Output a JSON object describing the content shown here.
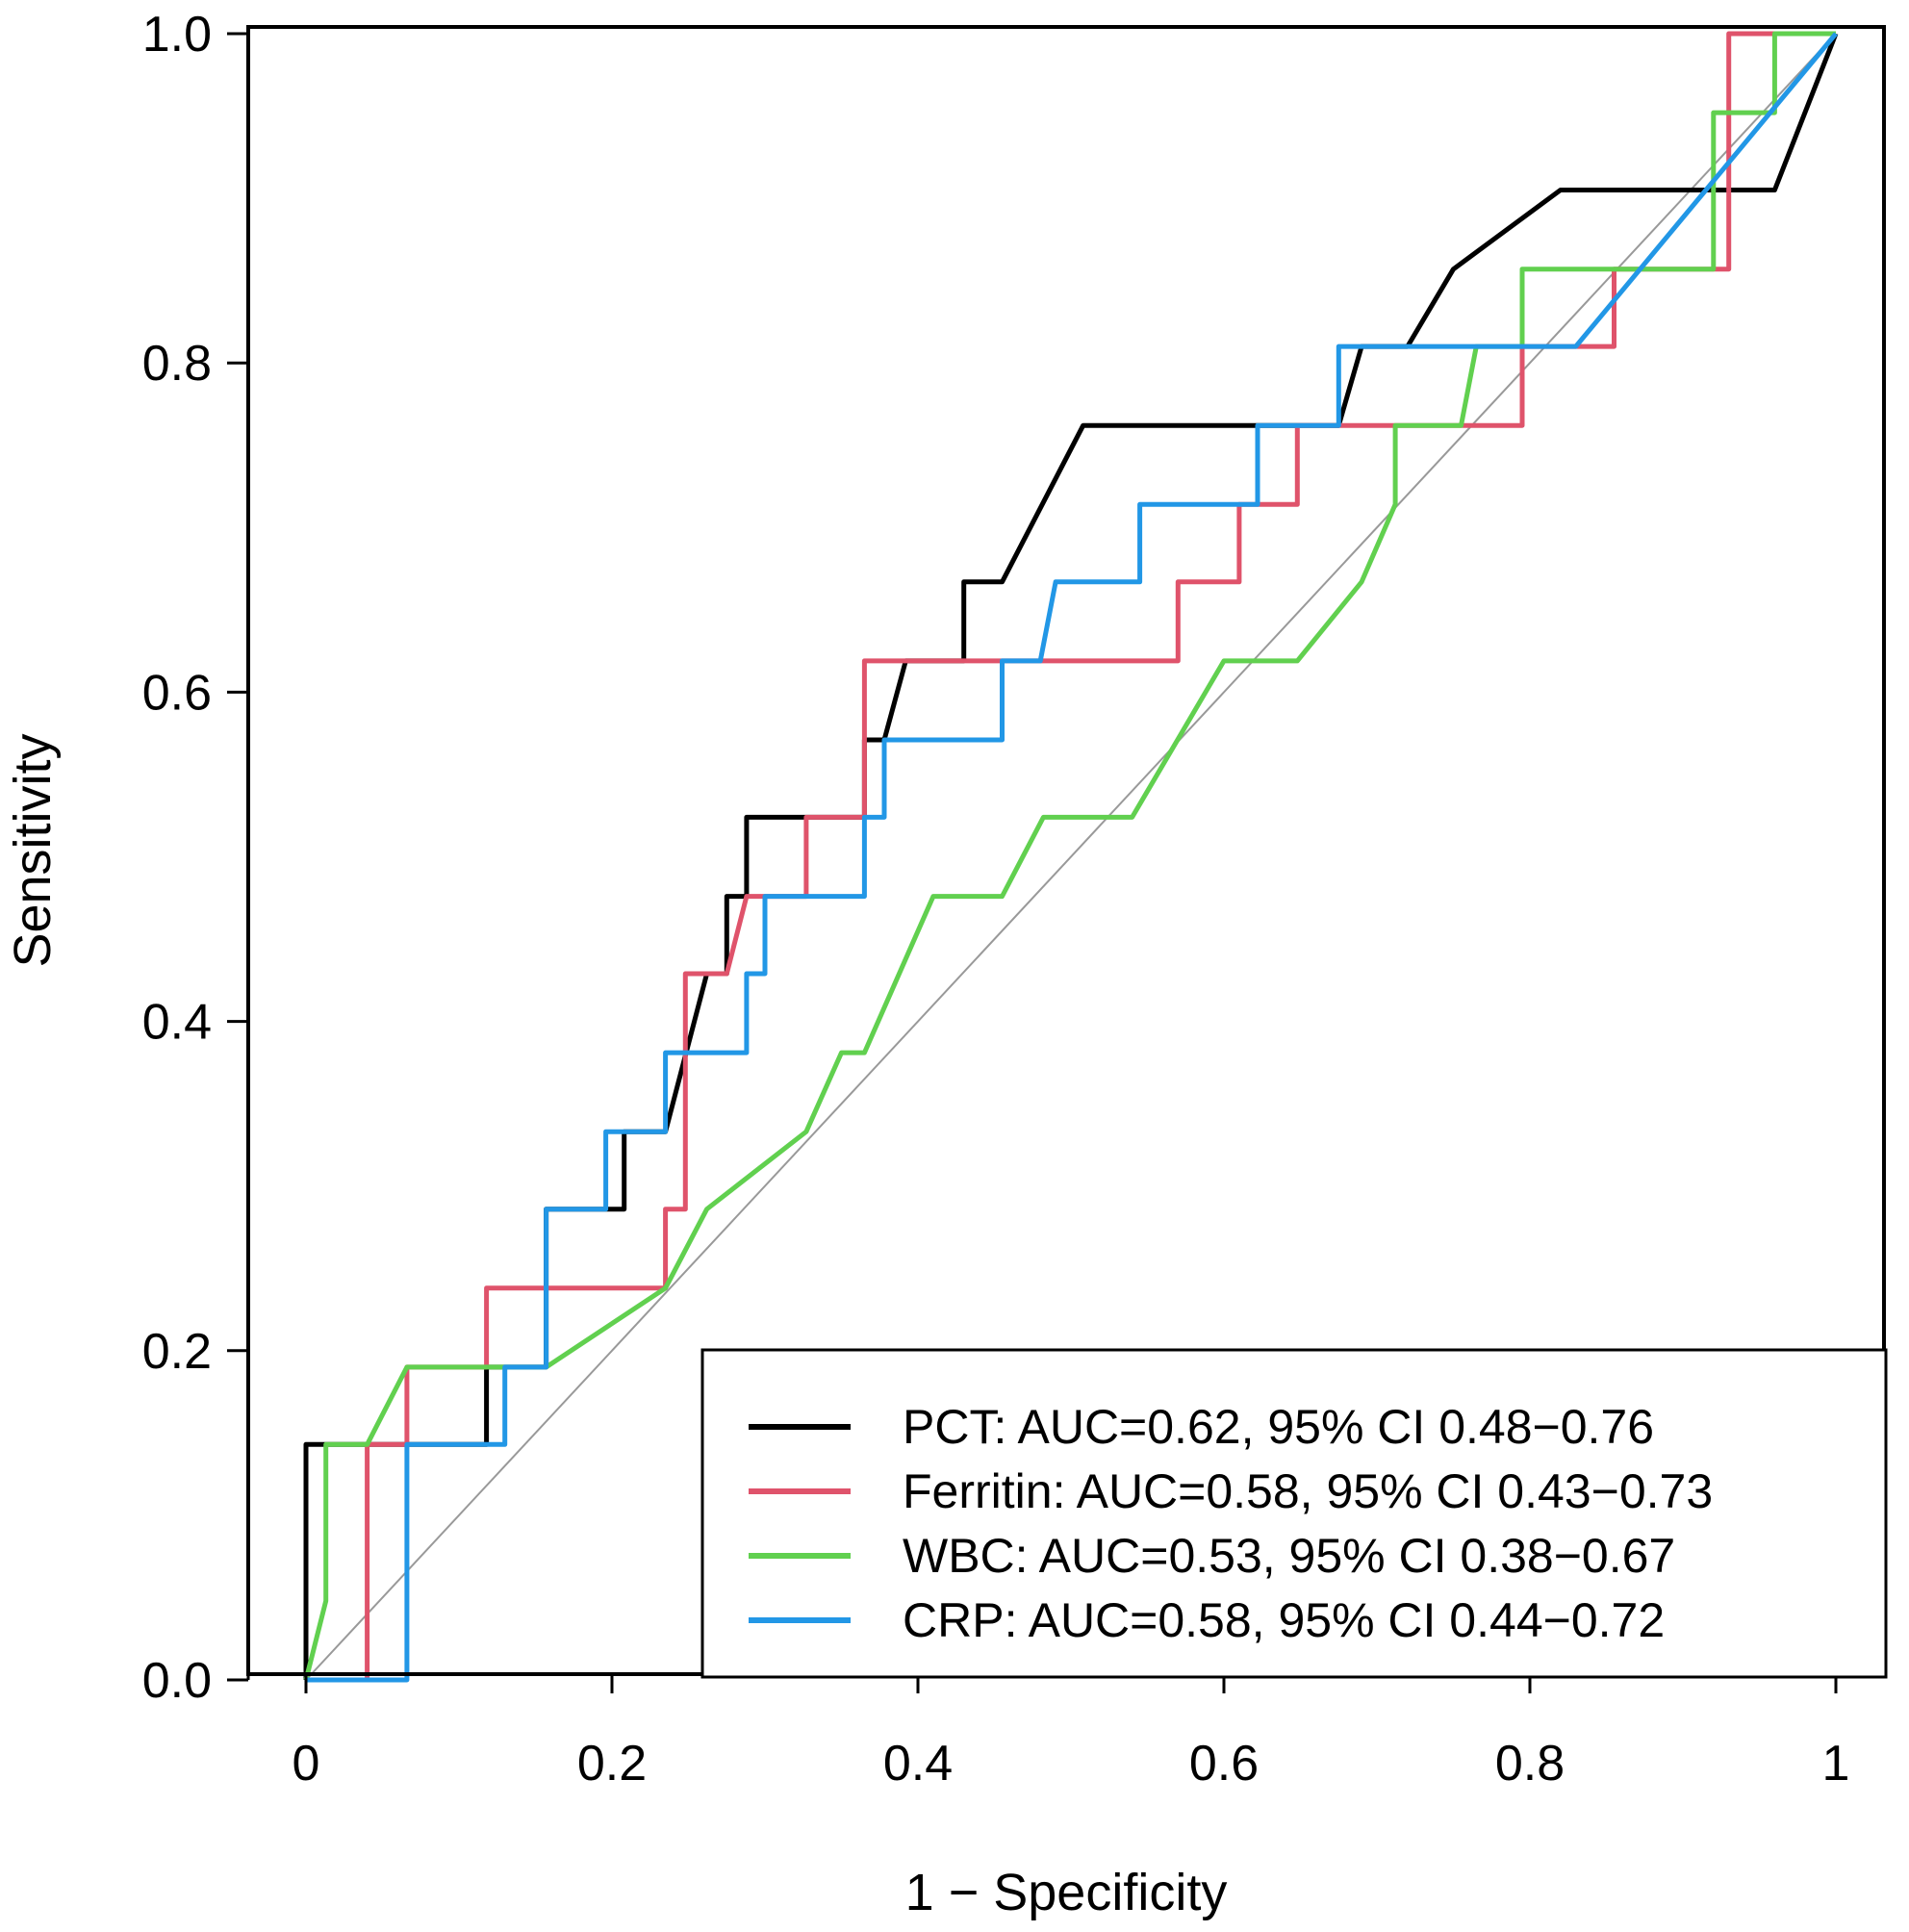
{
  "chart_data": {
    "type": "line",
    "title": "",
    "xlabel": "1 − Specificity",
    "ylabel": "Sensitivity",
    "xlim": [
      0,
      1
    ],
    "ylim": [
      0,
      1
    ],
    "x_ticks": [
      "0",
      "0.2",
      "0.4",
      "0.6",
      "0.8",
      "1"
    ],
    "y_ticks": [
      "0.0",
      "0.2",
      "0.4",
      "0.6",
      "0.8",
      "1.0"
    ],
    "grid": false,
    "legend_position": "bottom-right",
    "reference_line": {
      "from": [
        0,
        0
      ],
      "to": [
        1,
        1
      ],
      "color": "#999999"
    },
    "series": [
      {
        "name": "PCT",
        "legend_label": "PCT: AUC=0.62, 95% CI 0.48−0.76",
        "color": "#000000",
        "points": [
          [
            0,
            0
          ],
          [
            0,
            0.143
          ],
          [
            0.118,
            0.143
          ],
          [
            0.118,
            0.19
          ],
          [
            0.157,
            0.19
          ],
          [
            0.157,
            0.286
          ],
          [
            0.208,
            0.286
          ],
          [
            0.208,
            0.333
          ],
          [
            0.235,
            0.333
          ],
          [
            0.262,
            0.429
          ],
          [
            0.275,
            0.429
          ],
          [
            0.275,
            0.476
          ],
          [
            0.288,
            0.476
          ],
          [
            0.288,
            0.524
          ],
          [
            0.327,
            0.524
          ],
          [
            0.365,
            0.524
          ],
          [
            0.365,
            0.571
          ],
          [
            0.378,
            0.571
          ],
          [
            0.392,
            0.619
          ],
          [
            0.43,
            0.619
          ],
          [
            0.43,
            0.667
          ],
          [
            0.455,
            0.667
          ],
          [
            0.508,
            0.762
          ],
          [
            0.675,
            0.762
          ],
          [
            0.69,
            0.81
          ],
          [
            0.72,
            0.81
          ],
          [
            0.75,
            0.857
          ],
          [
            0.82,
            0.905
          ],
          [
            0.96,
            0.905
          ],
          [
            1,
            1
          ]
        ]
      },
      {
        "name": "Ferritin",
        "legend_label": "Ferritin: AUC=0.58, 95% CI 0.43−0.73",
        "color": "#df536b",
        "points": [
          [
            0,
            0
          ],
          [
            0.04,
            0
          ],
          [
            0.04,
            0.143
          ],
          [
            0.066,
            0.143
          ],
          [
            0.066,
            0.19
          ],
          [
            0.118,
            0.19
          ],
          [
            0.118,
            0.238
          ],
          [
            0.235,
            0.238
          ],
          [
            0.235,
            0.286
          ],
          [
            0.248,
            0.286
          ],
          [
            0.248,
            0.429
          ],
          [
            0.275,
            0.429
          ],
          [
            0.288,
            0.476
          ],
          [
            0.327,
            0.476
          ],
          [
            0.327,
            0.524
          ],
          [
            0.365,
            0.524
          ],
          [
            0.365,
            0.619
          ],
          [
            0.57,
            0.619
          ],
          [
            0.57,
            0.667
          ],
          [
            0.61,
            0.667
          ],
          [
            0.61,
            0.714
          ],
          [
            0.648,
            0.714
          ],
          [
            0.648,
            0.762
          ],
          [
            0.795,
            0.762
          ],
          [
            0.795,
            0.81
          ],
          [
            0.855,
            0.81
          ],
          [
            0.855,
            0.857
          ],
          [
            0.93,
            0.857
          ],
          [
            0.93,
            1
          ],
          [
            1,
            1
          ]
        ]
      },
      {
        "name": "WBC",
        "legend_label": "WBC: AUC=0.53, 95% CI 0.38−0.67",
        "color": "#61d04f",
        "points": [
          [
            0,
            0
          ],
          [
            0.013,
            0.048
          ],
          [
            0.013,
            0.143
          ],
          [
            0.04,
            0.143
          ],
          [
            0.066,
            0.19
          ],
          [
            0.157,
            0.19
          ],
          [
            0.235,
            0.238
          ],
          [
            0.262,
            0.286
          ],
          [
            0.327,
            0.333
          ],
          [
            0.35,
            0.381
          ],
          [
            0.365,
            0.381
          ],
          [
            0.41,
            0.476
          ],
          [
            0.455,
            0.476
          ],
          [
            0.482,
            0.524
          ],
          [
            0.54,
            0.524
          ],
          [
            0.6,
            0.619
          ],
          [
            0.648,
            0.619
          ],
          [
            0.69,
            0.667
          ],
          [
            0.712,
            0.714
          ],
          [
            0.712,
            0.762
          ],
          [
            0.755,
            0.762
          ],
          [
            0.765,
            0.81
          ],
          [
            0.795,
            0.81
          ],
          [
            0.795,
            0.857
          ],
          [
            0.92,
            0.857
          ],
          [
            0.92,
            0.952
          ],
          [
            0.96,
            0.952
          ],
          [
            0.96,
            1
          ],
          [
            1,
            1
          ]
        ]
      },
      {
        "name": "CRP",
        "legend_label": "CRP: AUC=0.58, 95% CI 0.44−0.72",
        "color": "#2297e6",
        "points": [
          [
            0,
            0
          ],
          [
            0.066,
            0
          ],
          [
            0.066,
            0.143
          ],
          [
            0.13,
            0.143
          ],
          [
            0.13,
            0.19
          ],
          [
            0.157,
            0.19
          ],
          [
            0.157,
            0.286
          ],
          [
            0.196,
            0.286
          ],
          [
            0.196,
            0.333
          ],
          [
            0.235,
            0.333
          ],
          [
            0.235,
            0.381
          ],
          [
            0.288,
            0.381
          ],
          [
            0.288,
            0.429
          ],
          [
            0.3,
            0.429
          ],
          [
            0.3,
            0.476
          ],
          [
            0.365,
            0.476
          ],
          [
            0.365,
            0.524
          ],
          [
            0.378,
            0.524
          ],
          [
            0.378,
            0.571
          ],
          [
            0.455,
            0.571
          ],
          [
            0.455,
            0.619
          ],
          [
            0.48,
            0.619
          ],
          [
            0.49,
            0.667
          ],
          [
            0.545,
            0.667
          ],
          [
            0.545,
            0.714
          ],
          [
            0.622,
            0.714
          ],
          [
            0.622,
            0.762
          ],
          [
            0.675,
            0.762
          ],
          [
            0.675,
            0.81
          ],
          [
            0.83,
            0.81
          ],
          [
            1,
            1
          ]
        ]
      }
    ]
  }
}
